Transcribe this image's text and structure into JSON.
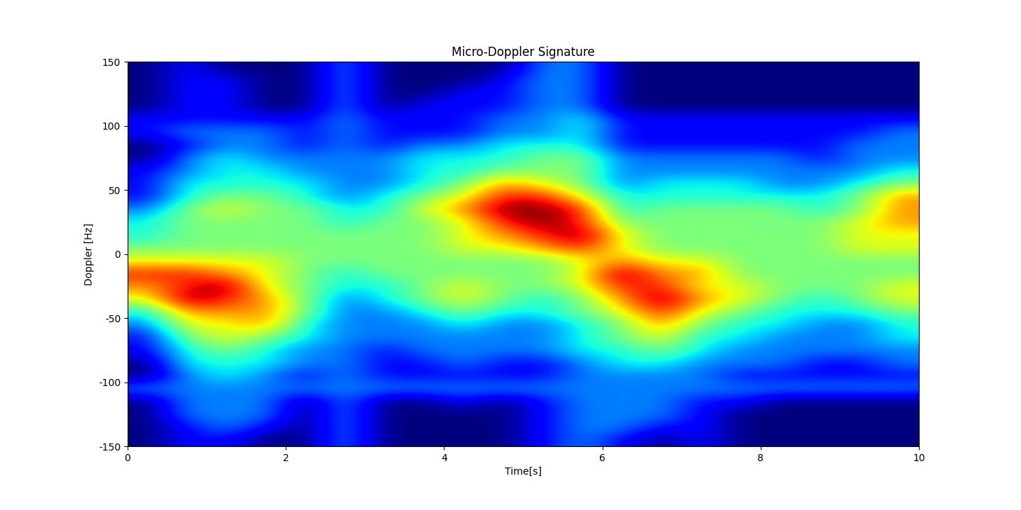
{
  "chart_data": {
    "type": "heatmap",
    "title": "Micro-Doppler Signature",
    "x_label": "Time[s]",
    "y_label": "Doppler [Hz]",
    "xlim": [
      0,
      10
    ],
    "ylim": [
      -150,
      150
    ],
    "xticks": [
      0,
      2,
      4,
      6,
      8,
      10
    ],
    "yticks": [
      -150,
      -100,
      -50,
      0,
      50,
      100,
      150
    ],
    "color": "jet",
    "x": [
      0.25,
      0.75,
      1.25,
      1.75,
      2.25,
      2.75,
      3.25,
      3.75,
      4.25,
      4.75,
      5.25,
      5.75,
      6.25,
      6.75,
      7.25,
      7.75,
      8.25,
      8.75,
      9.25,
      9.75
    ],
    "y": [
      -145,
      -135,
      -125,
      -115,
      -105,
      -95,
      -85,
      -75,
      -65,
      -55,
      -45,
      -35,
      -25,
      -15,
      -5,
      5,
      15,
      25,
      35,
      45,
      55,
      65,
      75,
      85,
      95,
      105,
      115,
      125,
      135,
      145
    ],
    "cells": [
      [
        1,
        2,
        2,
        1,
        1,
        3,
        1,
        1,
        1,
        1,
        2,
        3,
        2,
        1,
        2,
        1,
        1,
        1,
        1,
        1
      ],
      [
        1,
        2,
        3,
        2,
        1,
        3,
        1,
        1,
        1,
        1,
        2,
        3,
        3,
        2,
        2,
        1,
        1,
        1,
        1,
        1
      ],
      [
        1,
        3,
        3,
        3,
        1,
        3,
        1,
        1,
        1,
        1,
        2,
        3,
        3,
        3,
        2,
        1,
        1,
        1,
        1,
        1
      ],
      [
        1,
        3,
        3,
        3,
        1,
        3,
        1,
        1,
        2,
        1,
        2,
        3,
        3,
        3,
        2,
        2,
        1,
        1,
        1,
        1
      ],
      [
        3,
        3,
        3,
        3,
        3,
        3,
        3,
        3,
        3,
        3,
        3,
        3,
        3,
        3,
        3,
        3,
        3,
        3,
        3,
        3
      ],
      [
        1,
        3,
        4,
        3,
        2,
        3,
        2,
        2,
        2,
        2,
        2,
        3,
        3,
        3,
        3,
        2,
        2,
        2,
        2,
        2
      ],
      [
        1,
        4,
        4,
        4,
        3,
        3,
        2,
        2,
        3,
        2,
        2,
        3,
        4,
        4,
        3,
        3,
        3,
        2,
        2,
        3
      ],
      [
        2,
        4,
        5,
        4,
        3,
        3,
        2,
        3,
        3,
        3,
        3,
        4,
        4,
        5,
        4,
        3,
        3,
        3,
        3,
        3
      ],
      [
        2,
        5,
        6,
        5,
        4,
        3,
        3,
        3,
        3,
        3,
        3,
        4,
        5,
        6,
        4,
        4,
        3,
        3,
        3,
        4
      ],
      [
        3,
        6,
        6,
        7,
        4,
        3,
        3,
        3,
        4,
        3,
        3,
        4,
        5,
        7,
        5,
        4,
        4,
        3,
        3,
        4
      ],
      [
        4,
        7,
        7,
        7,
        5,
        3,
        3,
        4,
        5,
        4,
        4,
        5,
        6,
        8,
        6,
        5,
        4,
        4,
        4,
        5
      ],
      [
        6,
        9,
        8,
        7,
        5,
        3,
        4,
        5,
        6,
        5,
        4,
        5,
        7,
        9,
        7,
        6,
        5,
        4,
        5,
        6
      ],
      [
        7,
        8,
        9,
        6,
        5,
        4,
        4,
        5,
        6,
        5,
        5,
        6,
        8,
        8,
        6,
        6,
        5,
        5,
        5,
        6
      ],
      [
        8,
        8,
        7,
        6,
        5,
        4,
        5,
        5,
        5,
        5,
        5,
        6,
        9,
        7,
        7,
        5,
        5,
        5,
        5,
        5
      ],
      [
        6,
        6,
        6,
        6,
        5,
        5,
        5,
        5,
        5,
        5,
        5,
        6,
        7,
        6,
        6,
        5,
        5,
        5,
        5,
        5
      ],
      [
        5,
        5,
        5,
        5,
        5,
        5,
        5,
        5,
        6,
        6,
        7,
        8,
        6,
        5,
        5,
        5,
        5,
        5,
        6,
        6
      ],
      [
        4,
        5,
        5,
        5,
        5,
        5,
        5,
        5,
        6,
        7,
        8,
        9,
        6,
        5,
        5,
        5,
        5,
        5,
        6,
        6
      ],
      [
        4,
        5,
        5,
        5,
        5,
        4,
        5,
        5,
        6,
        8,
        9,
        8,
        5,
        5,
        5,
        5,
        5,
        5,
        6,
        7
      ],
      [
        3,
        5,
        6,
        5,
        5,
        4,
        4,
        6,
        7,
        9,
        9,
        8,
        4,
        5,
        5,
        5,
        5,
        4,
        5,
        7
      ],
      [
        2,
        4,
        5,
        5,
        4,
        3,
        4,
        5,
        6,
        8,
        8,
        6,
        4,
        4,
        4,
        4,
        4,
        4,
        5,
        7
      ],
      [
        2,
        4,
        4,
        4,
        4,
        3,
        3,
        4,
        5,
        7,
        6,
        5,
        3,
        4,
        4,
        4,
        3,
        3,
        4,
        5
      ],
      [
        2,
        3,
        4,
        4,
        3,
        3,
        3,
        4,
        4,
        5,
        5,
        5,
        3,
        3,
        3,
        3,
        3,
        3,
        3,
        4
      ],
      [
        1,
        3,
        4,
        3,
        3,
        3,
        3,
        4,
        4,
        4,
        5,
        5,
        3,
        3,
        3,
        3,
        3,
        2,
        3,
        3
      ],
      [
        1,
        2,
        3,
        3,
        2,
        3,
        2,
        3,
        3,
        4,
        4,
        4,
        2,
        2,
        2,
        2,
        2,
        2,
        3,
        3
      ],
      [
        2,
        3,
        3,
        3,
        2,
        3,
        2,
        2,
        2,
        3,
        3,
        4,
        2,
        2,
        2,
        2,
        2,
        2,
        2,
        3
      ],
      [
        2,
        2,
        2,
        2,
        2,
        3,
        2,
        2,
        2,
        3,
        3,
        4,
        2,
        2,
        2,
        2,
        2,
        2,
        2,
        2
      ],
      [
        1,
        2,
        2,
        1,
        1,
        3,
        1,
        2,
        2,
        2,
        3,
        3,
        1,
        1,
        1,
        1,
        1,
        1,
        1,
        1
      ],
      [
        1,
        2,
        2,
        1,
        1,
        3,
        1,
        1,
        2,
        2,
        3,
        3,
        1,
        1,
        1,
        1,
        1,
        1,
        1,
        1
      ],
      [
        1,
        2,
        2,
        1,
        1,
        3,
        1,
        1,
        1,
        2,
        3,
        3,
        1,
        1,
        1,
        1,
        1,
        1,
        1,
        1
      ],
      [
        1,
        2,
        1,
        1,
        1,
        3,
        1,
        1,
        1,
        1,
        3,
        3,
        1,
        1,
        1,
        1,
        1,
        1,
        1,
        1
      ]
    ]
  }
}
